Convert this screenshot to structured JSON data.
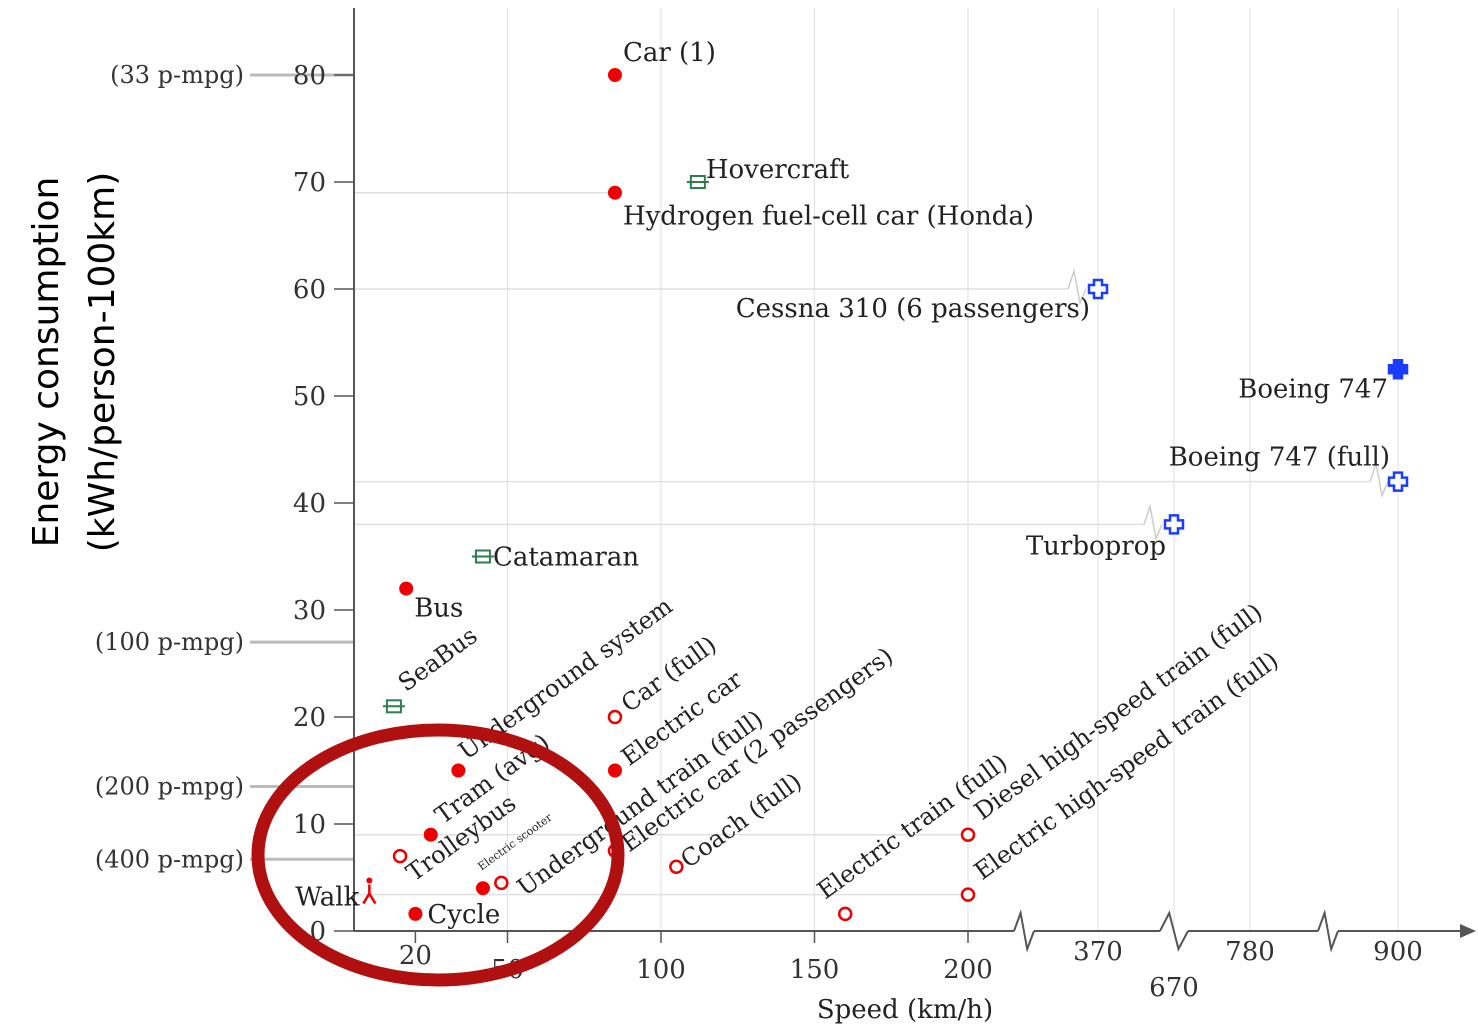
{
  "chart_data": {
    "type": "scatter",
    "title": "",
    "xlabel": "Speed (km/h)",
    "ylabel_line1": "Energy consumption",
    "ylabel_line2": "(kWh/person-100km)",
    "x_ticks_linear": [
      "20",
      "50",
      "100",
      "150",
      "200"
    ],
    "x_ticks_broken": [
      "370",
      "670",
      "780",
      "900"
    ],
    "y_ticks": [
      "0",
      "10",
      "20",
      "30",
      "40",
      "50",
      "60",
      "70",
      "80"
    ],
    "ylim": [
      0,
      85
    ],
    "mpg_labels": [
      {
        "text": "(33 p-mpg)",
        "y": 80
      },
      {
        "text": "(100 p-mpg)",
        "y": 27
      },
      {
        "text": "(200 p-mpg)",
        "y": 13.5
      },
      {
        "text": "(400 p-mpg)",
        "y": 6.7
      }
    ],
    "points": [
      {
        "label": "Car (1)",
        "x": 85,
        "y": 80,
        "marker": "filled-dot",
        "color": "#ee0000"
      },
      {
        "label": "Hovercraft",
        "x": 112,
        "y": 70,
        "marker": "boat",
        "color": "#2e7d4f"
      },
      {
        "label": "Hydrogen fuel-cell car (Honda)",
        "x": 85,
        "y": 69,
        "marker": "filled-dot",
        "color": "#ee0000"
      },
      {
        "label": "Cessna 310 (6 passengers)",
        "x": 370,
        "y": 60,
        "marker": "plane-open",
        "color": "#1a3cff"
      },
      {
        "label": "Boeing 747",
        "x": 900,
        "y": 52.5,
        "marker": "plane-filled",
        "color": "#1a3cff"
      },
      {
        "label": "Boeing 747 (full)",
        "x": 900,
        "y": 42,
        "marker": "plane-open",
        "color": "#1a3cff"
      },
      {
        "label": "Turboprop",
        "x": 670,
        "y": 38,
        "marker": "plane-open",
        "color": "#1a3cff"
      },
      {
        "label": "Catamaran",
        "x": 42,
        "y": 35,
        "marker": "boat",
        "color": "#2e7d4f"
      },
      {
        "label": "Bus",
        "x": 17,
        "y": 32,
        "marker": "filled-dot",
        "color": "#ee0000"
      },
      {
        "label": "SeaBus",
        "x": 13,
        "y": 21,
        "marker": "boat",
        "color": "#2e7d4f"
      },
      {
        "label": "Underground system",
        "x": 34,
        "y": 15,
        "marker": "filled-dot",
        "color": "#ee0000"
      },
      {
        "label": "Car (full)",
        "x": 85,
        "y": 20,
        "marker": "open-dot",
        "color": "#ee0000"
      },
      {
        "label": "Electric car",
        "x": 85,
        "y": 15,
        "marker": "filled-dot",
        "color": "#ee0000"
      },
      {
        "label": "Tram (avg)",
        "x": 25,
        "y": 9,
        "marker": "filled-dot",
        "color": "#ee0000"
      },
      {
        "label": "Underground train (full)",
        "x": 85,
        "y": 7.5,
        "marker": "open-dot",
        "color": "#ee0000"
      },
      {
        "label": "Electric car (2 passengers)",
        "x": 85,
        "y": 7.5,
        "marker": "none",
        "color": "#ee0000"
      },
      {
        "label": "Trolleybus",
        "x": 15,
        "y": 7,
        "marker": "open-dot",
        "color": "#ee0000"
      },
      {
        "label": "Electric scooter",
        "x": 48,
        "y": 4.5,
        "marker": "open-dot",
        "color": "#ee0000"
      },
      {
        "label": "Coach (full)",
        "x": 105,
        "y": 6,
        "marker": "open-dot",
        "color": "#ee0000"
      },
      {
        "label": "Walk",
        "x": 5,
        "y": 3.5,
        "marker": "walker",
        "color": "#ee0000"
      },
      {
        "label": "",
        "x": 42,
        "y": 4,
        "marker": "filled-dot",
        "color": "#ee0000"
      },
      {
        "label": "Cycle",
        "x": 20,
        "y": 1.6,
        "marker": "filled-dot",
        "color": "#ee0000"
      },
      {
        "label": "Electric train (full)",
        "x": 160,
        "y": 1.6,
        "marker": "open-dot",
        "color": "#ee0000"
      },
      {
        "label": "Diesel high-speed train (full)",
        "x": 200,
        "y": 9,
        "marker": "open-dot",
        "color": "#ee0000"
      },
      {
        "label": "Electric high-speed train (full)",
        "x": 200,
        "y": 3.4,
        "marker": "open-dot",
        "color": "#ee0000"
      }
    ],
    "highlight": {
      "shape": "ellipse",
      "color": "#b01010"
    },
    "grid": true,
    "legend": "none"
  }
}
